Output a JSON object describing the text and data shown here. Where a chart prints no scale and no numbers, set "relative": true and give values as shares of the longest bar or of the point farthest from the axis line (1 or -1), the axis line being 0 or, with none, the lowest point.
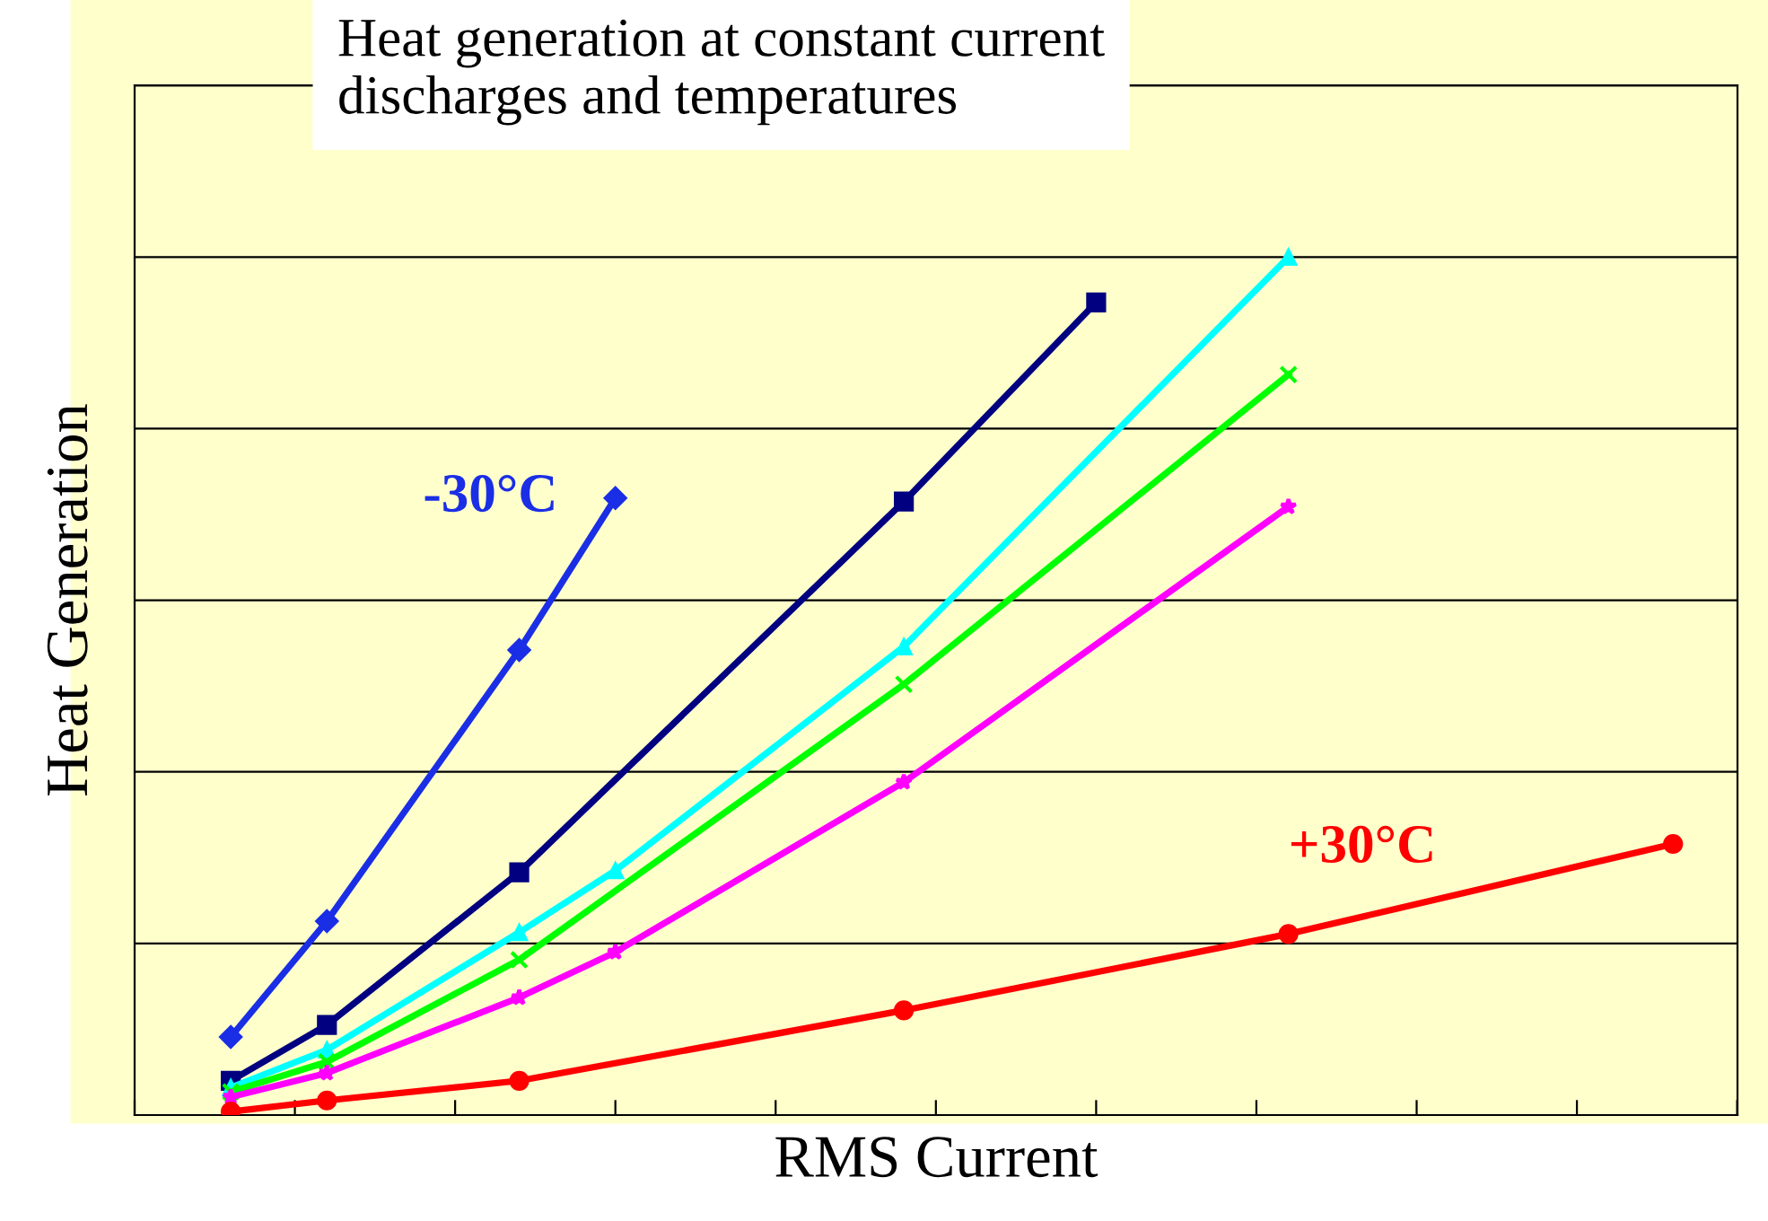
{
  "chart_data": {
    "type": "line",
    "title": "Heat generation at constant current\ndischarges and temperatures",
    "xlabel": "RMS Current",
    "ylabel": "Heat Generation",
    "relative": true,
    "grid": "y",
    "tick_labels": false,
    "categories": [
      null,
      null,
      null,
      null,
      null,
      null,
      null,
      null,
      null,
      null,
      null,
      null,
      null,
      null,
      null,
      null,
      null
    ],
    "series": [
      {
        "name": "-30°C",
        "color": "#1a2ee6",
        "marker": "diamond",
        "values": [
          null,
          0.091,
          0.226,
          null,
          0.542,
          0.719,
          null,
          null,
          null,
          null,
          null,
          null,
          null,
          null,
          null,
          null,
          null
        ]
      },
      {
        "color": "#000080",
        "marker": "square",
        "values": [
          null,
          0.04,
          0.105,
          null,
          0.283,
          null,
          null,
          null,
          0.715,
          null,
          0.947,
          null,
          null,
          null,
          null,
          null,
          null
        ]
      },
      {
        "color": "#00ffff",
        "marker": "triangle",
        "values": [
          null,
          0.032,
          0.076,
          null,
          0.213,
          0.285,
          null,
          null,
          0.546,
          null,
          null,
          null,
          1.0,
          null,
          null,
          null,
          null
        ]
      },
      {
        "color": "#00ff00",
        "marker": "cross",
        "values": [
          null,
          0.027,
          0.062,
          null,
          0.181,
          null,
          null,
          null,
          0.502,
          null,
          null,
          null,
          0.863,
          null,
          null,
          null,
          null
        ]
      },
      {
        "color": "#ff00ff",
        "marker": "star",
        "values": [
          null,
          0.021,
          0.049,
          null,
          0.137,
          0.19,
          null,
          null,
          0.388,
          null,
          null,
          null,
          0.709,
          null,
          null,
          null,
          null
        ]
      },
      {
        "name": "+30°C",
        "color": "#ff0000",
        "marker": "circle",
        "values": [
          null,
          0.004,
          0.017,
          null,
          0.04,
          null,
          null,
          null,
          0.122,
          null,
          null,
          null,
          0.211,
          null,
          null,
          null,
          0.316
        ]
      }
    ]
  }
}
